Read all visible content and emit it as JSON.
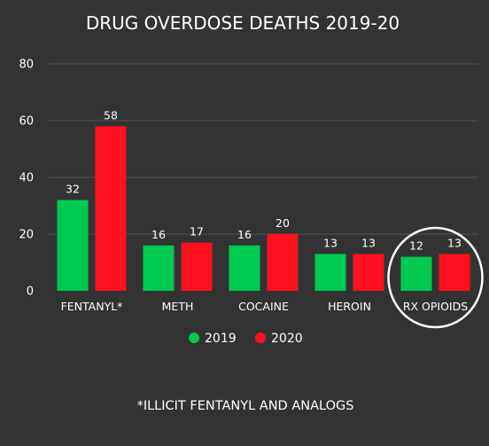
{
  "chart_data": {
    "type": "bar",
    "title": "DRUG OVERDOSE DEATHS 2019-20",
    "categories": [
      "FENTANYL*",
      "METH",
      "COCAINE",
      "HEROIN",
      "RX OPIOIDS"
    ],
    "series": [
      {
        "name": "2019",
        "values": [
          32,
          16,
          16,
          13,
          12
        ],
        "color": "#00c950"
      },
      {
        "name": "2020",
        "values": [
          58,
          17,
          20,
          13,
          13
        ],
        "color": "#ff1020"
      }
    ],
    "ylim": [
      0,
      80
    ],
    "yticks": [
      0,
      20,
      40,
      60,
      80
    ],
    "xlabel": "",
    "ylabel": "",
    "grid": true,
    "legend_position": "bottom-center",
    "highlighted_category": "RX OPIOIDS",
    "footnote": "*ILLICIT FENTANYL AND ANALOGS"
  }
}
